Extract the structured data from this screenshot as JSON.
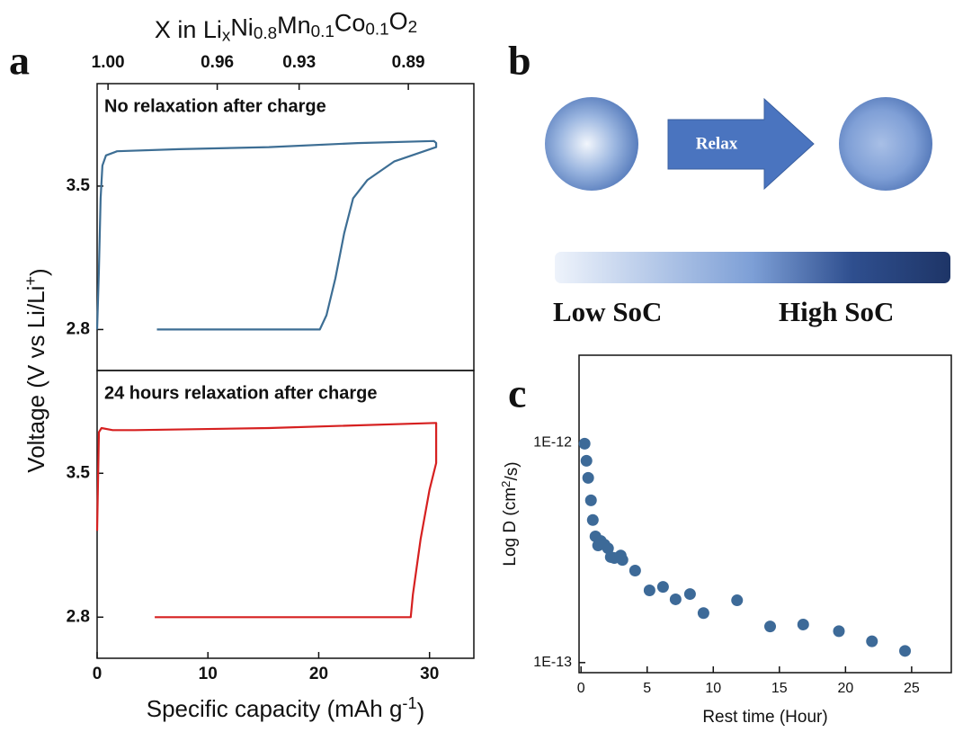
{
  "chart_data": [
    {
      "type": "line",
      "label": "a",
      "annotation": "No relaxation after charge",
      "x2label": [
        "X in Li",
        "x",
        "Ni",
        "0.8",
        "Mn",
        "0.1",
        "Co",
        "0.1",
        "O",
        "2"
      ],
      "ylabel": [
        "Voltage (V vs Li/Li",
        "+",
        ")"
      ],
      "xlim": [
        0,
        34
      ],
      "x2lim": [
        1.004,
        0.866
      ],
      "x2ticks": [
        {
          "value": 1,
          "label": "1.00"
        },
        0.96,
        0.93,
        0.89
      ],
      "ylim": [
        2.6,
        4.0
      ],
      "yticks": [
        3.5,
        2.8
      ],
      "series": [
        {
          "color": "#3d6e94",
          "x": [
            0,
            0.16,
            0.32,
            0.48,
            0.8,
            1.8,
            7.4,
            15.5,
            23.5,
            30.4,
            30.6,
            30.6,
            26.8,
            24.4,
            23.1,
            22.3,
            21.5,
            20.7,
            20.1,
            5.4
          ],
          "y": [
            2.8,
            3.09,
            3.44,
            3.6,
            3.65,
            3.67,
            3.68,
            3.69,
            3.71,
            3.72,
            3.71,
            3.69,
            3.62,
            3.53,
            3.44,
            3.27,
            3.05,
            2.87,
            2.8,
            2.8
          ]
        }
      ]
    },
    {
      "type": "line",
      "annotation": "24 hours relaxation after charge",
      "xlabel": [
        "Specific capacity (mAh g",
        "-1",
        ")"
      ],
      "xlim": [
        0,
        34
      ],
      "xticks": [
        0,
        10,
        20,
        30
      ],
      "ylim": [
        2.6,
        4.0
      ],
      "yticks": [
        3.5,
        2.8
      ],
      "series": [
        {
          "color": "#d62020",
          "x": [
            0,
            0.16,
            0.4,
            1.4,
            3.4,
            15.5,
            30.6,
            30.6,
            30,
            29.2,
            28.5,
            28.3,
            5.2
          ],
          "y": [
            3.22,
            3.7,
            3.72,
            3.71,
            3.71,
            3.72,
            3.745,
            3.55,
            3.42,
            3.18,
            2.91,
            2.8,
            2.8
          ]
        }
      ]
    },
    {
      "type": "scatter",
      "label": "c",
      "log_y": true,
      "xlabel": [
        "Rest time (Hour)"
      ],
      "ylabel": [
        "Log D (cm",
        "2",
        "/s)"
      ],
      "xlim": [
        -0.15,
        28
      ],
      "xticks": [
        0,
        5,
        10,
        15,
        20,
        25
      ],
      "ylim": [
        9e-14,
        2.5e-12
      ],
      "yticks": [
        {
          "value": 1e-12,
          "label": "1E-12"
        },
        {
          "value": 1e-13,
          "label": "1E-13"
        }
      ],
      "series": [
        {
          "color": "#3d6a98",
          "x": [
            0.27,
            0.41,
            0.54,
            0.75,
            0.89,
            1.09,
            1.29,
            1.5,
            1.77,
            2.04,
            2.25,
            2.52,
            3.0,
            3.13,
            4.09,
            5.18,
            6.2,
            7.15,
            8.24,
            9.26,
            11.8,
            14.3,
            16.8,
            19.5,
            22.0,
            24.5
          ],
          "y": [
            9.9e-13,
            8.28e-13,
            6.92e-13,
            5.47e-13,
            4.45e-13,
            3.75e-13,
            3.41e-13,
            3.57e-13,
            3.44e-13,
            3.31e-13,
            3.02e-13,
            2.99e-13,
            3.07e-13,
            2.93e-13,
            2.62e-13,
            2.13e-13,
            2.21e-13,
            1.94e-13,
            2.05e-13,
            1.68e-13,
            1.92e-13,
            1.46e-13,
            1.49e-13,
            1.39e-13,
            1.25e-13,
            1.13e-13
          ]
        }
      ]
    }
  ],
  "diagram": {
    "label": "b",
    "arrow_label": "Relax",
    "low_label": "Low SoC",
    "high_label": "High SoC"
  }
}
